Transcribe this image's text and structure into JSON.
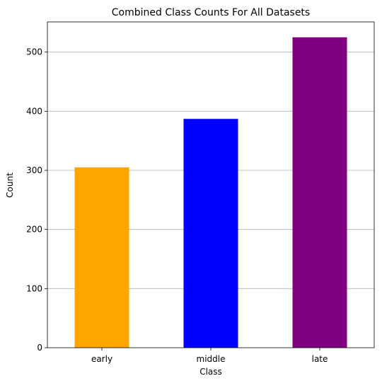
{
  "chart_data": {
    "type": "bar",
    "title": "Combined Class Counts For All Datasets",
    "xlabel": "Class",
    "ylabel": "Count",
    "categories": [
      "early",
      "middle",
      "late"
    ],
    "values": [
      305,
      387,
      525
    ],
    "colors": [
      "#ffa500",
      "#0000ff",
      "#800080"
    ],
    "ylim": [
      0,
      551
    ],
    "yticks": [
      0,
      100,
      200,
      300,
      400,
      500
    ],
    "grid": "y",
    "legend": "none"
  }
}
